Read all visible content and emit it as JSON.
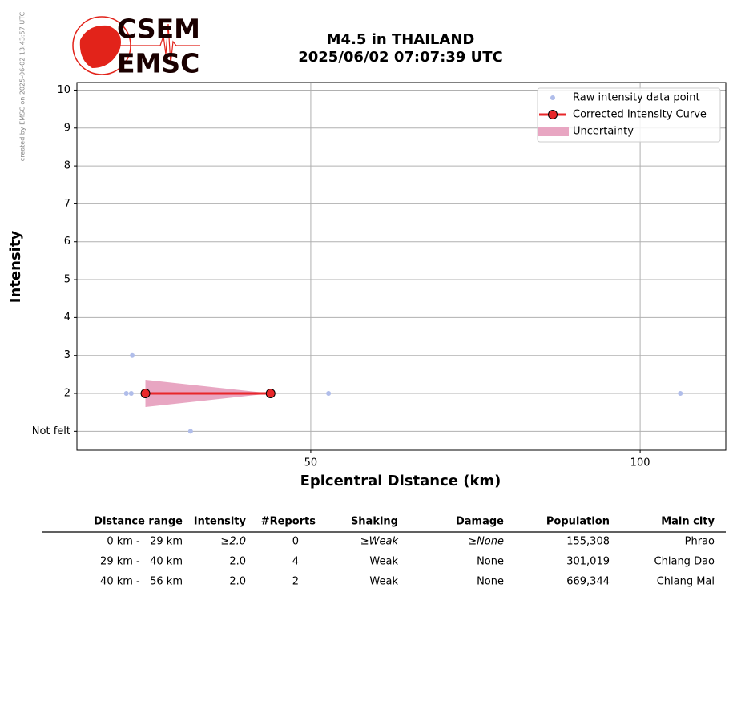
{
  "logo": {
    "top": "CSEM",
    "bottom": "EMSC"
  },
  "credit": "created by EMSC on 2025-06-02 13:43:57 UTC",
  "chart_data": {
    "type": "line",
    "title": "M4.5 in THAILAND",
    "subtitle": "2025/06/02 07:07:39 UTC",
    "x_label": "Epicentral Distance (km)",
    "y_label": "Intensity",
    "xlim": [
      14.5,
      113
    ],
    "xticks": [
      50,
      100
    ],
    "ylim": [
      0.5,
      10.2
    ],
    "yticks": [
      {
        "value": 1,
        "label": "Not felt"
      },
      2,
      3,
      4,
      5,
      6,
      7,
      8,
      9,
      10
    ],
    "grid": true,
    "legend": "upper right",
    "series": [
      {
        "name": "Raw intensity data point",
        "type": "scatter",
        "color": "#b0bdea",
        "x": [
          22.9,
          22.0,
          22.75,
          52.7,
          106.1,
          31.75
        ],
        "values": [
          3,
          2,
          2,
          2,
          2,
          1
        ]
      },
      {
        "name": "Corrected Intensity Curve",
        "type": "line",
        "color": "#e8272a",
        "x": [
          24.9,
          43.9
        ],
        "values": [
          2,
          2
        ]
      },
      {
        "name": "Uncertainty",
        "type": "band",
        "color": "#e8a6c2",
        "x": [
          24.9,
          43.9
        ],
        "lower": [
          1.64,
          2
        ],
        "upper": [
          2.36,
          2
        ]
      }
    ]
  },
  "table": {
    "header": [
      "Distance range",
      "Intensity",
      "#Reports",
      "Shaking",
      "Damage",
      "Population",
      "Main city"
    ],
    "rows": [
      [
        "0 km -   29 km",
        "≥2.0",
        "0",
        "≥Weak",
        "≥None",
        "155,308",
        "Phrao"
      ],
      [
        "29 km -   40 km",
        "2.0",
        "4",
        "Weak",
        "None",
        "301,019",
        "Chiang Dao"
      ],
      [
        "40 km -   56 km",
        "2.0",
        "2",
        "Weak",
        "None",
        "669,344",
        "Chiang Mai"
      ]
    ]
  }
}
